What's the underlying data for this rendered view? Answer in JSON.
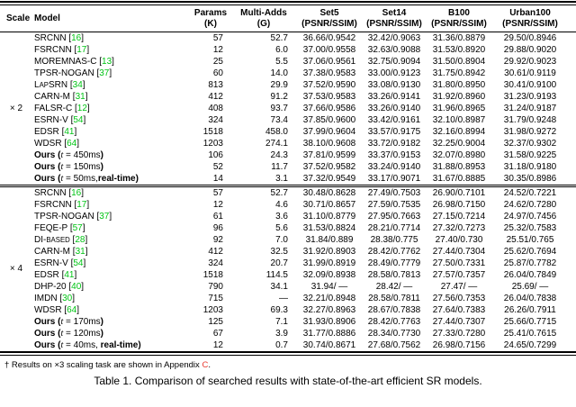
{
  "colors": {
    "citation_green": "#00c414",
    "appendix_link_red": "#e8392f"
  },
  "table": {
    "headers": {
      "scale": "Scale",
      "model": "Model",
      "params": {
        "l1": "Params",
        "l2": "(K)"
      },
      "madds": {
        "l1": "Multi-Adds",
        "l2": "(G)"
      },
      "set5": {
        "l1": "Set5",
        "l2": "(PSNR/SSIM)"
      },
      "set14": {
        "l1": "Set14",
        "l2": "(PSNR/SSIM)"
      },
      "b100": {
        "l1": "B100",
        "l2": "(PSNR/SSIM)"
      },
      "urban100": {
        "l1": "Urban100",
        "l2": "(PSNR/SSIM)"
      }
    },
    "ours_label": {
      "name": "Ours",
      "open": " (",
      "var": "t",
      "eq": " = ",
      "close": ")"
    },
    "sections": [
      {
        "scale": "× 2",
        "rows": [
          {
            "name": "SRCNN",
            "cite": "16",
            "params": "57",
            "madds": "52.7",
            "set5": "36.66/0.9542",
            "set14": "32.42/0.9063",
            "b100": "31.36/0.8879",
            "urban100": "29.50/0.8946"
          },
          {
            "name": "FSRCNN",
            "cite": "17",
            "params": "12",
            "madds": "6.0",
            "set5": "37.00/0.9558",
            "set14": "32.63/0.9088",
            "b100": "31.53/0.8920",
            "urban100": "29.88/0.9020"
          },
          {
            "name": "MOREMNAS-C",
            "cite": "13",
            "params": "25",
            "madds": "5.5",
            "set5": "37.06/0.9561",
            "set14": "32.75/0.9094",
            "b100": "31.50/0.8904",
            "urban100": "29.92/0.9023"
          },
          {
            "name": "TPSR-NOGAN",
            "cite": "37",
            "params": "60",
            "madds": "14.0",
            "set5": "37.38/0.9583",
            "set14": "33.00/0.9123",
            "b100": "31.75/0.8942",
            "urban100": "30.61/0.9119"
          },
          {
            "name": "LapSRN",
            "cite": "34",
            "params": "813",
            "madds": "29.9",
            "set5": "37.52/0.9590",
            "set14": "33.08/0.9130",
            "b100": "31.80/0.8950",
            "urban100": "30.41/0.9100"
          },
          {
            "name": "CARN-M",
            "cite": "31",
            "params": "412",
            "madds": "91.2",
            "set5": "37.53/0.9583",
            "set14": "33.26/0.9141",
            "b100": "31.92/0.8960",
            "urban100": "31.23/0.9193"
          },
          {
            "name": "FALSR-C",
            "cite": "12",
            "params": "408",
            "madds": "93.7",
            "set5": "37.66/0.9586",
            "set14": "33.26/0.9140",
            "b100": "31.96/0.8965",
            "urban100": "31.24/0.9187"
          },
          {
            "name": "ESRN-V",
            "cite": "54",
            "params": "324",
            "madds": "73.4",
            "set5": "37.85/0.9600",
            "set14": "33.42/0.9161",
            "b100": "32.10/0.8987",
            "urban100": "31.79/0.9248"
          },
          {
            "name": "EDSR",
            "cite": "41",
            "params": "1518",
            "madds": "458.0",
            "set5": "37.99/0.9604",
            "set14": "33.57/0.9175",
            "b100": "32.16/0.8994",
            "urban100": "31.98/0.9272"
          },
          {
            "name": "WDSR",
            "cite": "64",
            "params": "1203",
            "madds": "274.1",
            "set5": "38.10/0.9608",
            "set14": "33.72/0.9182",
            "b100": "32.25/0.9004",
            "urban100": "32.37/0.9302"
          },
          {
            "ours": true,
            "time": "450ms",
            "sep": "",
            "realtime": "",
            "params": "106",
            "madds": "24.3",
            "set5": "37.81/0.9599",
            "set14": "33.37/0.9153",
            "b100": "32.07/0.8980",
            "urban100": "31.58/0.9225"
          },
          {
            "ours": true,
            "time": "150ms",
            "sep": "",
            "realtime": "",
            "params": "52",
            "madds": "11.7",
            "set5": "37.52/0.9582",
            "set14": "33.24/0.9140",
            "b100": "31.88/0.8953",
            "urban100": "31.18/0.9180"
          },
          {
            "ours": true,
            "time": "50ms",
            "sep": ",",
            "realtime": "real-time",
            "params": "14",
            "madds": "3.1",
            "set5": "37.32/0.9549",
            "set14": "33.17/0.9071",
            "b100": "31.67/0.8885",
            "urban100": "30.35/0.8986"
          }
        ]
      },
      {
        "scale": "× 4",
        "rows": [
          {
            "name": "SRCNN",
            "cite": "16",
            "params": "57",
            "madds": "52.7",
            "set5": "30.48/0.8628",
            "set14": "27.49/0.7503",
            "b100": "26.90/0.7101",
            "urban100": "24.52/0.7221"
          },
          {
            "name": "FSRCNN",
            "cite": "17",
            "params": "12",
            "madds": "4.6",
            "set5": "30.71/0.8657",
            "set14": "27.59/0.7535",
            "b100": "26.98/0.7150",
            "urban100": "24.62/0.7280"
          },
          {
            "name": "TPSR-NOGAN",
            "cite": "37",
            "params": "61",
            "madds": "3.6",
            "set5": "31.10/0.8779",
            "set14": "27.95/0.7663",
            "b100": "27.15/0.7214",
            "urban100": "24.97/0.7456"
          },
          {
            "name": "FEQE-P",
            "cite": "57",
            "params": "96",
            "madds": "5.6",
            "set5": "31.53/0.8824",
            "set14": "28.21/0.7714",
            "b100": "27.32/0.7273",
            "urban100": "25.32/0.7583"
          },
          {
            "name": "DI-based",
            "cite": "28",
            "params": "92",
            "madds": "7.0",
            "set5": "31.84/0.889",
            "set14": "28.38/0.775",
            "b100": "27.40/0.730",
            "urban100": "25.51/0.765"
          },
          {
            "name": "CARN-M",
            "cite": "31",
            "params": "412",
            "madds": "32.5",
            "set5": "31.92/0.8903",
            "set14": "28.42/0.7762",
            "b100": "27.44/0.7304",
            "urban100": "25.62/0.7694"
          },
          {
            "name": "ESRN-V",
            "cite": "54",
            "params": "324",
            "madds": "20.7",
            "set5": "31.99/0.8919",
            "set14": "28.49/0.7779",
            "b100": "27.50/0.7331",
            "urban100": "25.87/0.7782"
          },
          {
            "name": "EDSR",
            "cite": "41",
            "params": "1518",
            "madds": "114.5",
            "set5": "32.09/0.8938",
            "set14": "28.58/0.7813",
            "b100": "27.57/0.7357",
            "urban100": "26.04/0.7849"
          },
          {
            "name": "DHP-20",
            "cite": "40",
            "params": "790",
            "madds": "34.1",
            "set5": "31.94/ —",
            "set14": "28.42/ —",
            "b100": "27.47/ —",
            "urban100": "25.69/ —"
          },
          {
            "name": "IMDN",
            "cite": "30",
            "params": "715",
            "madds": "—",
            "set5": "32.21/0.8948",
            "set14": "28.58/0.7811",
            "b100": "27.56/0.7353",
            "urban100": "26.04/0.7838"
          },
          {
            "name": "WDSR",
            "cite": "64",
            "params": "1203",
            "madds": "69.3",
            "set5": "32.27/0.8963",
            "set14": "28.67/0.7838",
            "b100": "27.64/0.7383",
            "urban100": "26.26/0.7911"
          },
          {
            "ours": true,
            "time": "170ms",
            "sep": "",
            "realtime": "",
            "params": "125",
            "madds": "7.1",
            "set5": "31.93/0.8906",
            "set14": "28.42/0.7763",
            "b100": "27.44/0.7307",
            "urban100": "25.66/0.7715"
          },
          {
            "ours": true,
            "time": "120ms",
            "sep": "",
            "realtime": "",
            "params": "67",
            "madds": "3.9",
            "set5": "31.77/0.8886",
            "set14": "28.34/0.7730",
            "b100": "27.33/0.7280",
            "urban100": "25.41/0.7615"
          },
          {
            "ours": true,
            "time": "40ms",
            "sep": ", ",
            "realtime": "real-time",
            "params": "12",
            "madds": "0.7",
            "set5": "30.74/0.8671",
            "set14": "27.68/0.7562",
            "b100": "26.98/0.7156",
            "urban100": "24.65/0.7299"
          }
        ]
      }
    ]
  },
  "footnote": {
    "prefix": "† Results on ×3 scaling task are shown in Appendix ",
    "link": "C",
    "suffix": "."
  },
  "caption": "Table 1. Comparison of searched results with state-of-the-art efficient SR models."
}
